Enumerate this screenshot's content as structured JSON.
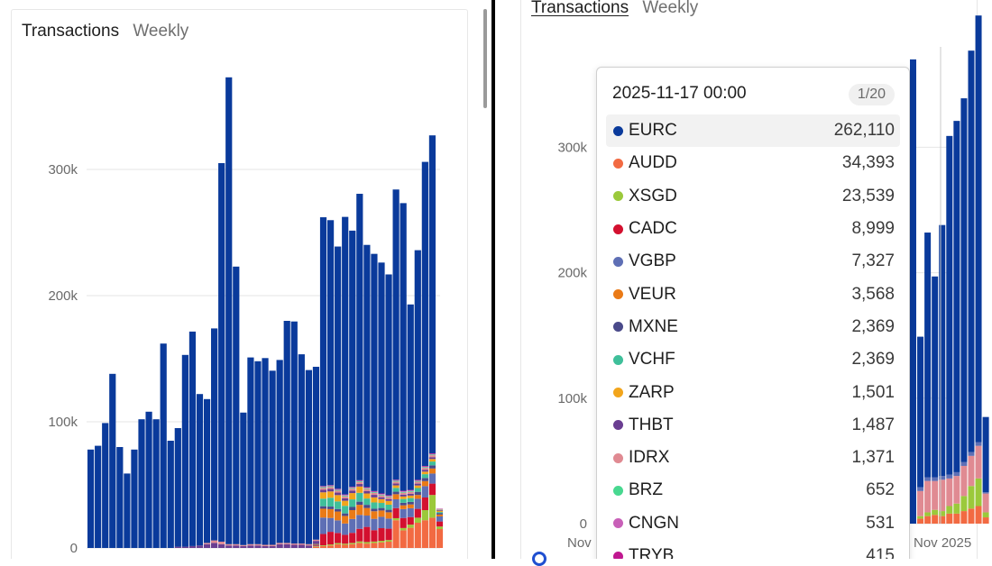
{
  "left": {
    "tabs": {
      "active": "Transactions",
      "inactive": "Weekly"
    }
  },
  "right": {
    "tabs": {
      "active": "Transactions",
      "inactive": "Weekly"
    },
    "x_ticks": [
      "Nov",
      "Nov 2025"
    ],
    "tooltip": {
      "date": "2025-11-17 00:00",
      "page": "1/20",
      "rows": [
        {
          "name": "EURC",
          "value": "262,110",
          "color": "#0a3a9b"
        },
        {
          "name": "AUDD",
          "value": "34,393",
          "color": "#f26a42"
        },
        {
          "name": "XSGD",
          "value": "23,539",
          "color": "#9bc93b"
        },
        {
          "name": "CADC",
          "value": "8,999",
          "color": "#d3102f"
        },
        {
          "name": "VGBP",
          "value": "7,327",
          "color": "#5e6fb5"
        },
        {
          "name": "VEUR",
          "value": "3,568",
          "color": "#ea7a16"
        },
        {
          "name": "MXNE",
          "value": "2,369",
          "color": "#4a4a8a"
        },
        {
          "name": "VCHF",
          "value": "2,369",
          "color": "#3fbf9a"
        },
        {
          "name": "ZARP",
          "value": "1,501",
          "color": "#f2a51c"
        },
        {
          "name": "THBT",
          "value": "1,487",
          "color": "#6a3e91"
        },
        {
          "name": "IDRX",
          "value": "1,371",
          "color": "#e08a92"
        },
        {
          "name": "BRZ",
          "value": "652",
          "color": "#48d890"
        },
        {
          "name": "CNGN",
          "value": "531",
          "color": "#c860b8"
        },
        {
          "name": "TRYB",
          "value": "415",
          "color": "#c01890"
        }
      ]
    }
  },
  "chart_data": [
    {
      "type": "bar",
      "stacked": true,
      "title": "",
      "ylim": [
        0,
        380000
      ],
      "yticks": [
        0,
        100000,
        200000,
        300000
      ],
      "ytick_labels": [
        "0",
        "100k",
        "200k",
        "300k"
      ],
      "grid": true,
      "series": [
        {
          "name": "EURC",
          "color": "#0a3a9b",
          "values": [
            78000,
            81000,
            99000,
            138000,
            80000,
            59000,
            78000,
            102000,
            108000,
            102000,
            162000,
            85000,
            94000,
            152000,
            170000,
            120000,
            114000,
            168000,
            300000,
            370000,
            220000,
            105000,
            148000,
            145000,
            148000,
            138000,
            145000,
            176000,
            176000,
            150000,
            138000,
            137000,
            213000,
            210000,
            192000,
            220000,
            203000,
            227000,
            192000,
            188000,
            183000,
            175000,
            230000,
            228000,
            147000,
            182000,
            241000,
            252000,
            0
          ]
        },
        {
          "name": "AUDD",
          "color": "#f26a42",
          "values": [
            0,
            0,
            0,
            0,
            0,
            0,
            0,
            0,
            0,
            0,
            0,
            0,
            0,
            0,
            0,
            0,
            0,
            0,
            0,
            0,
            0,
            0,
            0,
            0,
            0,
            0,
            0,
            0,
            0,
            0,
            0,
            800,
            1500,
            2000,
            3000,
            2500,
            3000,
            4000,
            3500,
            4000,
            4500,
            5000,
            22000,
            14000,
            16000,
            20000,
            22000,
            24000,
            15000
          ]
        },
        {
          "name": "XSGD",
          "color": "#9bc93b",
          "values": [
            0,
            0,
            0,
            0,
            0,
            0,
            0,
            0,
            0,
            0,
            0,
            0,
            0,
            0,
            0,
            0,
            0,
            0,
            0,
            0,
            0,
            0,
            0,
            0,
            0,
            0,
            0,
            0,
            0,
            0,
            0,
            500,
            600,
            800,
            900,
            900,
            1000,
            1200,
            1200,
            1100,
            1200,
            1300,
            1600,
            1800,
            2500,
            4000,
            8000,
            18000,
            2000
          ]
        },
        {
          "name": "CADC",
          "color": "#d3102f",
          "values": [
            0,
            0,
            0,
            0,
            0,
            0,
            0,
            0,
            0,
            0,
            0,
            0,
            0,
            0,
            0,
            0,
            0,
            0,
            0,
            0,
            0,
            0,
            0,
            0,
            0,
            0,
            0,
            0,
            0,
            0,
            0,
            600,
            9000,
            10000,
            8000,
            7000,
            8000,
            10000,
            12000,
            9000,
            10000,
            9000,
            8000,
            8000,
            6000,
            7000,
            10000,
            9000,
            4000
          ]
        },
        {
          "name": "VGBP",
          "color": "#5e6fb5",
          "values": [
            0,
            0,
            0,
            0,
            0,
            0,
            0,
            0,
            0,
            0,
            0,
            0,
            0,
            0,
            0,
            0,
            0,
            0,
            0,
            0,
            0,
            0,
            0,
            0,
            0,
            0,
            0,
            0,
            0,
            0,
            0,
            600,
            13000,
            11000,
            10000,
            9000,
            11000,
            11000,
            9000,
            9000,
            9000,
            8000,
            7000,
            7000,
            7000,
            8000,
            9000,
            8000,
            4000
          ]
        },
        {
          "name": "VEUR",
          "color": "#ea7a16",
          "values": [
            0,
            0,
            0,
            0,
            0,
            0,
            0,
            0,
            0,
            0,
            0,
            0,
            0,
            0,
            0,
            0,
            0,
            0,
            0,
            0,
            0,
            0,
            0,
            0,
            0,
            0,
            0,
            0,
            0,
            0,
            0,
            600,
            7000,
            7000,
            7000,
            6000,
            7000,
            8000,
            6000,
            6000,
            5000,
            5000,
            4000,
            3000,
            3000,
            3000,
            4000,
            4000,
            1500
          ]
        },
        {
          "name": "MXNE",
          "color": "#4a4a8a",
          "values": [
            0,
            0,
            0,
            0,
            0,
            0,
            0,
            0,
            0,
            0,
            0,
            0,
            0,
            0,
            0,
            0,
            0,
            0,
            0,
            0,
            0,
            0,
            0,
            0,
            0,
            0,
            0,
            0,
            0,
            0,
            0,
            500,
            2000,
            2000,
            2000,
            2000,
            2500,
            2500,
            2500,
            2000,
            2000,
            2000,
            2000,
            2000,
            2000,
            2500,
            2500,
            2500,
            1000
          ]
        },
        {
          "name": "VCHF",
          "color": "#3fbf9a",
          "values": [
            0,
            0,
            0,
            0,
            0,
            0,
            0,
            0,
            0,
            0,
            0,
            0,
            0,
            0,
            0,
            0,
            0,
            0,
            0,
            0,
            0,
            0,
            0,
            0,
            0,
            0,
            0,
            0,
            0,
            0,
            0,
            0,
            6000,
            7000,
            6000,
            6000,
            6000,
            7000,
            5000,
            5000,
            4000,
            4000,
            3000,
            3000,
            3000,
            3000,
            3000,
            3000,
            1000
          ]
        },
        {
          "name": "ZARP",
          "color": "#f2a51c",
          "values": [
            0,
            0,
            0,
            0,
            0,
            0,
            0,
            0,
            0,
            0,
            0,
            0,
            0,
            0,
            0,
            0,
            0,
            0,
            0,
            0,
            0,
            0,
            0,
            0,
            0,
            0,
            0,
            0,
            0,
            0,
            0,
            0,
            5000,
            5000,
            5000,
            4000,
            5000,
            5000,
            4000,
            4000,
            3000,
            3000,
            2000,
            2000,
            2000,
            2000,
            2000,
            2000,
            1000
          ]
        },
        {
          "name": "THBT",
          "color": "#6a3e91",
          "values": [
            0,
            0,
            0,
            0,
            0,
            0,
            0,
            0,
            0,
            0,
            0,
            0,
            1000,
            1000,
            1500,
            2000,
            3000,
            4000,
            3000,
            2000,
            2000,
            1500,
            2000,
            2000,
            1500,
            1500,
            3000,
            3000,
            2500,
            2500,
            2000,
            2000,
            2000,
            2000,
            2000,
            2000,
            2000,
            2000,
            2000,
            2000,
            1500,
            1500,
            1500,
            1500,
            1500,
            1500,
            1500,
            1500,
            500
          ]
        },
        {
          "name": "IDRX",
          "color": "#e08a92",
          "values": [
            0,
            0,
            0,
            0,
            0,
            0,
            0,
            0,
            0,
            0,
            0,
            0,
            0,
            0,
            0,
            0,
            1000,
            2000,
            2000,
            1000,
            1000,
            800,
            1000,
            1000,
            1000,
            1000,
            1000,
            1000,
            1000,
            1000,
            1000,
            1000,
            1500,
            1500,
            1500,
            1500,
            1500,
            1500,
            1500,
            1500,
            1500,
            1500,
            1500,
            1500,
            1500,
            1500,
            1500,
            1500,
            500
          ]
        },
        {
          "name": "BRZ",
          "color": "#48d890",
          "values": [
            0,
            0,
            0,
            0,
            0,
            0,
            0,
            0,
            0,
            0,
            0,
            0,
            0,
            0,
            0,
            0,
            0,
            0,
            0,
            0,
            0,
            0,
            0,
            0,
            0,
            0,
            0,
            0,
            0,
            0,
            0,
            0,
            600,
            600,
            600,
            600,
            600,
            600,
            600,
            600,
            600,
            600,
            600,
            600,
            600,
            600,
            600,
            600,
            300
          ]
        },
        {
          "name": "CNGN",
          "color": "#c860b8",
          "values": [
            0,
            0,
            0,
            0,
            0,
            0,
            0,
            0,
            0,
            0,
            0,
            0,
            0,
            0,
            0,
            0,
            0,
            0,
            0,
            0,
            0,
            0,
            0,
            0,
            0,
            0,
            0,
            0,
            0,
            0,
            0,
            0,
            500,
            500,
            500,
            500,
            500,
            500,
            500,
            500,
            500,
            500,
            500,
            500,
            500,
            500,
            500,
            500,
            200
          ]
        },
        {
          "name": "TRYB",
          "color": "#c01890",
          "values": [
            0,
            0,
            0,
            0,
            0,
            0,
            0,
            0,
            0,
            0,
            0,
            0,
            0,
            0,
            0,
            0,
            0,
            0,
            0,
            0,
            0,
            0,
            0,
            0,
            0,
            0,
            0,
            0,
            0,
            0,
            0,
            0,
            400,
            400,
            400,
            400,
            400,
            400,
            400,
            400,
            400,
            400,
            400,
            400,
            400,
            400,
            400,
            400,
            200
          ]
        }
      ]
    },
    {
      "type": "bar",
      "stacked": true,
      "title": "",
      "ylim": [
        0,
        380000
      ],
      "yticks": [
        0,
        100000,
        200000,
        300000
      ],
      "ytick_labels": [
        "0",
        "100k",
        "200k",
        "300k"
      ],
      "grid": true,
      "series": [
        {
          "name": "EURC",
          "color": "#0a3a9b",
          "values": [
            370000,
            120000,
            195000,
            160000,
            200000,
            270000,
            280000,
            290000,
            320000,
            340000,
            60000
          ]
        },
        {
          "name": "AUDD",
          "color": "#f26a42",
          "values": [
            0,
            4000,
            6000,
            7000,
            6000,
            8000,
            8000,
            10000,
            12000,
            14000,
            5000
          ]
        },
        {
          "name": "XSGD",
          "color": "#9bc93b",
          "values": [
            0,
            2000,
            3000,
            4000,
            4000,
            6000,
            8000,
            12000,
            18000,
            22000,
            4000
          ]
        },
        {
          "name": "IDRX",
          "color": "#e08a92",
          "values": [
            0,
            20000,
            25000,
            23000,
            25000,
            22000,
            22000,
            24000,
            24000,
            26000,
            15000
          ]
        },
        {
          "name": "VGBP",
          "color": "#5e6fb5",
          "values": [
            0,
            3000,
            3000,
            3000,
            3000,
            3000,
            3000,
            3000,
            3000,
            3000,
            1000
          ]
        }
      ]
    }
  ]
}
